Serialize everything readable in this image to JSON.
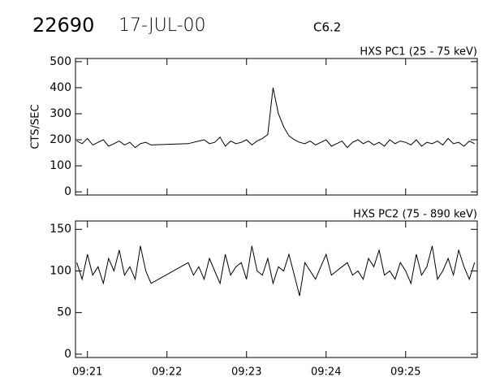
{
  "header": {
    "id": "22690",
    "date": "17-JUL-00",
    "class": "C6.2"
  },
  "chart_data": [
    {
      "type": "line",
      "title": "HXS PC1 (25 - 75 keV)",
      "y_label": "CTS/SEC",
      "color": "#000000",
      "x": [
        1252,
        1256,
        1260,
        1264,
        1268,
        1272,
        1276,
        1280,
        1284,
        1288,
        1292,
        1296,
        1300,
        1304,
        1308,
        1336,
        1340,
        1344,
        1348,
        1352,
        1356,
        1360,
        1364,
        1368,
        1372,
        1376,
        1380,
        1384,
        1388,
        1392,
        1396,
        1400,
        1404,
        1408,
        1412,
        1416,
        1420,
        1424,
        1428,
        1432,
        1436,
        1440,
        1444,
        1448,
        1452,
        1456,
        1460,
        1464,
        1468,
        1472,
        1476,
        1480,
        1484,
        1488,
        1492,
        1496,
        1500,
        1504,
        1508,
        1512,
        1516,
        1520,
        1524,
        1528,
        1532,
        1536,
        1540,
        1544,
        1548,
        1552
      ],
      "values": [
        195,
        185,
        205,
        180,
        190,
        200,
        175,
        185,
        195,
        180,
        190,
        170,
        185,
        190,
        180,
        185,
        190,
        195,
        200,
        185,
        190,
        210,
        175,
        195,
        185,
        190,
        200,
        180,
        195,
        205,
        220,
        400,
        300,
        250,
        215,
        200,
        190,
        185,
        195,
        180,
        190,
        200,
        175,
        185,
        195,
        170,
        190,
        200,
        185,
        195,
        180,
        190,
        175,
        200,
        185,
        195,
        190,
        180,
        200,
        175,
        190,
        185,
        195,
        180,
        205,
        185,
        190,
        175,
        195,
        185
      ],
      "xlim": [
        1251,
        1554
      ],
      "ylim": [
        -12,
        512
      ],
      "xticks": [
        {
          "value": 1260,
          "label": "09:21"
        },
        {
          "value": 1320,
          "label": "09:22"
        },
        {
          "value": 1380,
          "label": "09:23"
        },
        {
          "value": 1440,
          "label": "09:24"
        },
        {
          "value": 1500,
          "label": "09:25"
        }
      ],
      "yticks": [
        0,
        100,
        200,
        300,
        400,
        500
      ]
    },
    {
      "type": "line",
      "title": "HXS PC2 (75 - 890 keV)",
      "color": "#000000",
      "x": [
        1252,
        1256,
        1260,
        1264,
        1268,
        1272,
        1276,
        1280,
        1284,
        1288,
        1292,
        1296,
        1300,
        1304,
        1308,
        1336,
        1340,
        1344,
        1348,
        1352,
        1356,
        1360,
        1364,
        1368,
        1372,
        1376,
        1380,
        1384,
        1388,
        1392,
        1396,
        1400,
        1404,
        1408,
        1412,
        1416,
        1420,
        1424,
        1428,
        1432,
        1436,
        1440,
        1444,
        1448,
        1452,
        1456,
        1460,
        1464,
        1468,
        1472,
        1476,
        1480,
        1484,
        1488,
        1492,
        1496,
        1500,
        1504,
        1508,
        1512,
        1516,
        1520,
        1524,
        1528,
        1532,
        1536,
        1540,
        1544,
        1548,
        1552
      ],
      "values": [
        110,
        90,
        120,
        95,
        105,
        85,
        115,
        100,
        125,
        95,
        105,
        90,
        130,
        100,
        85,
        110,
        95,
        105,
        90,
        115,
        100,
        85,
        120,
        95,
        105,
        110,
        90,
        130,
        100,
        95,
        115,
        85,
        105,
        100,
        120,
        95,
        70,
        110,
        100,
        90,
        105,
        120,
        95,
        100,
        105,
        110,
        95,
        100,
        90,
        115,
        105,
        125,
        95,
        100,
        90,
        110,
        100,
        85,
        120,
        95,
        105,
        130,
        90,
        100,
        115,
        95,
        125,
        105,
        90,
        110
      ],
      "xlim": [
        1251,
        1554
      ],
      "ylim": [
        -4,
        160
      ],
      "xticks": [
        {
          "value": 1260,
          "label": "09:21"
        },
        {
          "value": 1320,
          "label": "09:22"
        },
        {
          "value": 1380,
          "label": "09:23"
        },
        {
          "value": 1440,
          "label": "09:24"
        },
        {
          "value": 1500,
          "label": "09:25"
        }
      ],
      "yticks": [
        0,
        50,
        100,
        150
      ],
      "show_xtick_labels": true
    }
  ]
}
